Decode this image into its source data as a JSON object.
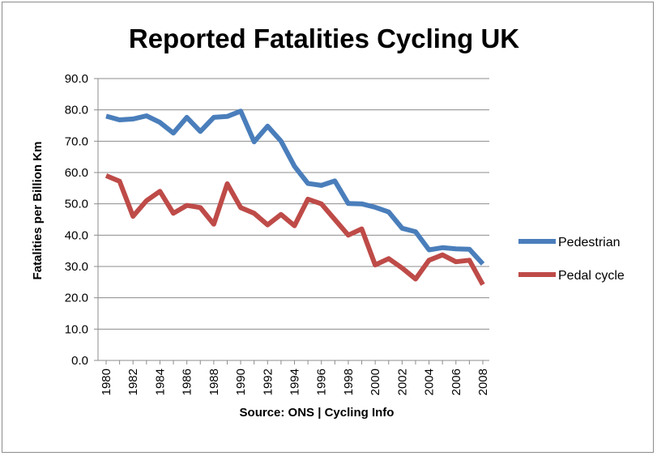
{
  "chart_data": {
    "type": "line",
    "title": "Reported Fatalities Cycling UK",
    "xlabel": "Source: ONS | Cycling Info",
    "ylabel": "Fatalities per Billion Km",
    "ylim": [
      0,
      90
    ],
    "yticks": [
      "0.0",
      "10.0",
      "20.0",
      "30.0",
      "40.0",
      "50.0",
      "60.0",
      "70.0",
      "80.0",
      "90.0"
    ],
    "xticks": [
      "1980",
      "1982",
      "1984",
      "1986",
      "1988",
      "1990",
      "1992",
      "1994",
      "1996",
      "1998",
      "2000",
      "2002",
      "2004",
      "2006",
      "2008"
    ],
    "x": [
      1980,
      1981,
      1982,
      1983,
      1984,
      1985,
      1986,
      1987,
      1988,
      1989,
      1990,
      1991,
      1992,
      1993,
      1994,
      1995,
      1996,
      1997,
      1998,
      1999,
      2000,
      2001,
      2002,
      2003,
      2004,
      2005,
      2006,
      2007,
      2008
    ],
    "grid": true,
    "legend_position": "right",
    "series": [
      {
        "name": "Pedestrian",
        "color": "#4a7ebb",
        "values": [
          78.0,
          76.8,
          77.1,
          78.1,
          76.0,
          72.6,
          77.6,
          73.1,
          77.6,
          77.9,
          79.6,
          69.8,
          74.8,
          70.0,
          62.0,
          56.5,
          55.9,
          57.3,
          50.1,
          50.0,
          48.9,
          47.4,
          42.2,
          41.1,
          35.3,
          36.0,
          35.6,
          35.5,
          30.8
        ]
      },
      {
        "name": "Pedal cycle",
        "color": "#be4b48",
        "values": [
          59.0,
          57.2,
          46.0,
          51.0,
          54.0,
          47.0,
          49.5,
          48.8,
          43.5,
          56.4,
          48.8,
          47.0,
          43.3,
          46.6,
          43.0,
          51.5,
          50.0,
          45.0,
          40.0,
          42.0,
          30.5,
          32.5,
          29.5,
          26.0,
          32.0,
          33.7,
          31.5,
          32.0,
          24.2
        ]
      }
    ]
  }
}
